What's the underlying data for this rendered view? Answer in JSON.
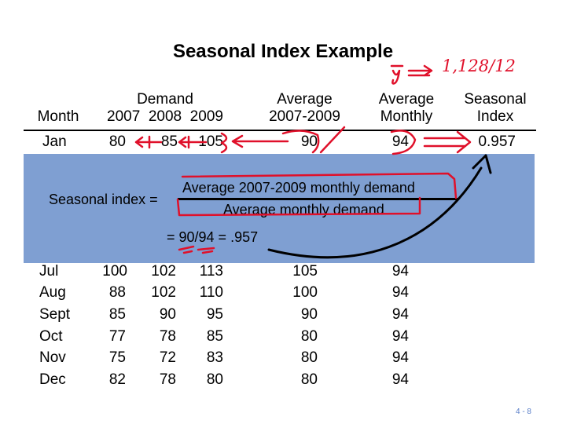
{
  "title": "Seasonal Index Example",
  "headers": {
    "month": "Month",
    "demand": "Demand",
    "years": "2007  2008  2009",
    "avg_2007_2009_line1": "Average",
    "avg_2007_2009_line2": "2007-2009",
    "avg_monthly_line1": "Average",
    "avg_monthly_line2": "Monthly",
    "seasonal_line1": "Seasonal",
    "seasonal_line2": "Index"
  },
  "first_row": {
    "month": "Jan",
    "d2007": "80",
    "d2008": "85",
    "d2009": "105",
    "avg": "90",
    "monthly": "94",
    "index": "0.957"
  },
  "partial_row": {
    "month": "Jul",
    "d2007": "100",
    "d2008": "102",
    "d2009": "113",
    "avg": "105",
    "monthly": "94"
  },
  "rows": [
    {
      "month": "Aug",
      "d2007": "88",
      "d2008": "102",
      "d2009": "110",
      "avg": "100",
      "monthly": "94"
    },
    {
      "month": "Sept",
      "d2007": "85",
      "d2008": "90",
      "d2009": "95",
      "avg": "90",
      "monthly": "94"
    },
    {
      "month": "Oct",
      "d2007": "77",
      "d2008": "78",
      "d2009": "85",
      "avg": "80",
      "monthly": "94"
    },
    {
      "month": "Nov",
      "d2007": "75",
      "d2008": "72",
      "d2009": "83",
      "avg": "80",
      "monthly": "94"
    },
    {
      "month": "Dec",
      "d2007": "82",
      "d2008": "78",
      "d2009": "80",
      "avg": "80",
      "monthly": "94"
    }
  ],
  "formula": {
    "label": "Seasonal index =",
    "numerator": "Average 2007-2009 monthly demand",
    "denominator": "Average monthly demand",
    "result": "= 90/94 = .957"
  },
  "annotation": {
    "text": "1,128/12"
  },
  "footer": "4 - 8",
  "colors": {
    "overlay": "#7f9fd2",
    "ink": "#e0102a",
    "footer": "#5a7fc8"
  }
}
